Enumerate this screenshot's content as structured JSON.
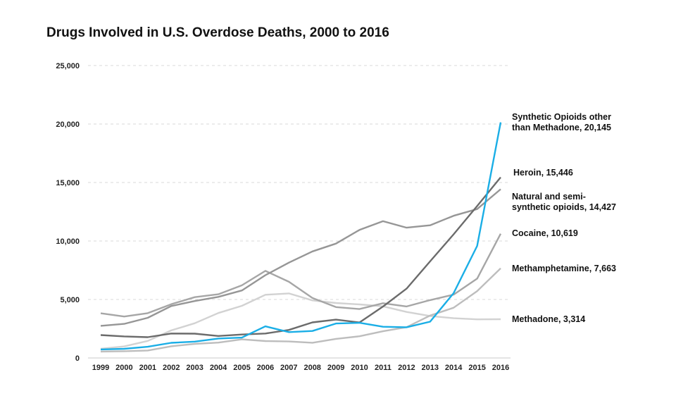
{
  "chart_data": {
    "type": "line",
    "title": "Drugs Involved in U.S. Overdose Deaths, 2000 to 2016",
    "xlabel": "",
    "ylabel": "",
    "x": [
      1999,
      2000,
      2001,
      2002,
      2003,
      2004,
      2005,
      2006,
      2007,
      2008,
      2009,
      2010,
      2011,
      2012,
      2013,
      2014,
      2015,
      2016
    ],
    "ylim": [
      0,
      25000
    ],
    "yticks": [
      0,
      5000,
      10000,
      15000,
      20000,
      25000
    ],
    "ytick_labels": [
      "0",
      "5,000",
      "10,000",
      "15,000",
      "20,000",
      "25,000"
    ],
    "grid": "horizontal dashed",
    "legend": "direct labels at right end of lines",
    "series": [
      {
        "name": "Synthetic Opioids other than Methadone",
        "label_lines": [
          "Synthetic Opioids other",
          "than Methadone, 20,145"
        ],
        "color": "#1aaee6",
        "values": [
          730,
          782,
          957,
          1295,
          1400,
          1664,
          1742,
          2707,
          2213,
          2306,
          2946,
          3007,
          2666,
          2628,
          3105,
          5544,
          9580,
          20145
        ]
      },
      {
        "name": "Heroin",
        "label_lines": [
          "Heroin, 15,446"
        ],
        "color": "#6b6b6b",
        "values": [
          1960,
          1842,
          1779,
          2089,
          2080,
          1878,
          2009,
          2088,
          2399,
          3041,
          3278,
          3036,
          4397,
          5925,
          8257,
          10574,
          12989,
          15446
        ]
      },
      {
        "name": "Natural and semi-synthetic opioids",
        "label_lines": [
          "Natural and semi-",
          "synthetic opioids, 14,427"
        ],
        "color": "#969696",
        "values": [
          2749,
          2917,
          3434,
          4441,
          4867,
          5220,
          5773,
          7080,
          8152,
          9109,
          9780,
          10943,
          11693,
          11140,
          11346,
          12159,
          12727,
          14427
        ]
      },
      {
        "name": "Cocaine",
        "label_lines": [
          "Cocaine, 10,619"
        ],
        "color": "#a6a6a6",
        "values": [
          3822,
          3544,
          3833,
          4599,
          5199,
          5443,
          6208,
          7448,
          6512,
          5129,
          4350,
          4183,
          4681,
          4404,
          4944,
          5415,
          6784,
          10619
        ]
      },
      {
        "name": "Methamphetamine",
        "label_lines": [
          "Methamphetamine, 7,663"
        ],
        "color": "#bdbdbd",
        "values": [
          547,
          578,
          637,
          1003,
          1207,
          1315,
          1593,
          1445,
          1410,
          1301,
          1632,
          1854,
          2286,
          2635,
          3627,
          4298,
          5716,
          7663
        ]
      },
      {
        "name": "Methadone",
        "label_lines": [
          "Methadone, 3,314"
        ],
        "color": "#d2d2d2",
        "values": [
          784,
          988,
          1456,
          2358,
          2972,
          3845,
          4460,
          5406,
          5518,
          4924,
          4696,
          4577,
          4418,
          3932,
          3591,
          3400,
          3301,
          3314
        ]
      }
    ]
  }
}
